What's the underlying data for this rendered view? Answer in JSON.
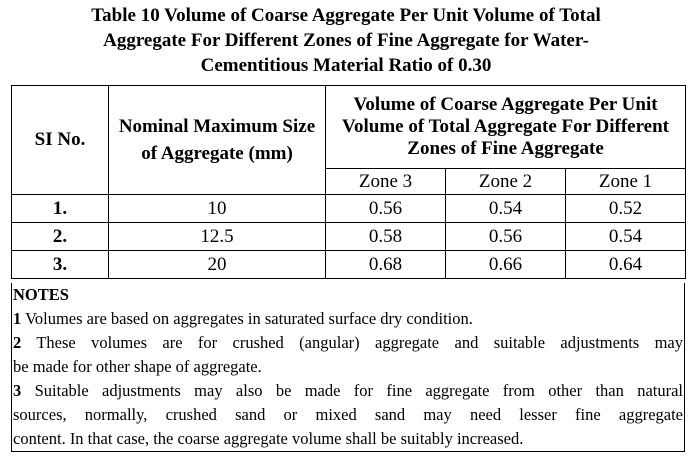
{
  "title": {
    "line1": "Table 10 Volume of Coarse Aggregate Per Unit Volume of  Total",
    "line2": "Aggregate For Different Zones of Fine Aggregate for Water-",
    "line3": "Cementitious Material Ratio of 0.30"
  },
  "table": {
    "headers": {
      "sl": "SI No.",
      "size": "Nominal Maximum Size of Aggregate (mm)",
      "volume": "Volume of Coarse Aggregate Per Unit Volume of Total Aggregate For Different Zones of Fine Aggregate",
      "zones": [
        "Zone 3",
        "Zone 2",
        "Zone 1"
      ]
    },
    "rows": [
      {
        "sl": "1.",
        "size": "10",
        "z3": "0.56",
        "z2": "0.54",
        "z1": "0.52"
      },
      {
        "sl": "2.",
        "size": "12.5",
        "z3": "0.58",
        "z2": "0.56",
        "z1": "0.54"
      },
      {
        "sl": "3.",
        "size": "20",
        "z3": "0.68",
        "z2": "0.66",
        "z1": "0.64"
      }
    ]
  },
  "notes": {
    "heading": "NOTES",
    "items": [
      {
        "num": "1",
        "text": "Volumes are based on aggregates in saturated surface dry condition."
      },
      {
        "num": "2",
        "text_a": "These volumes are for crushed (angular) aggregate and suitable adjustments may",
        "text_b": "be made for other shape of aggregate."
      },
      {
        "num": "3",
        "text_a": "Suitable adjustments may also be made for fine aggregate from other than natural",
        "text_b": "sources, normally, crushed sand or mixed sand may need lesser fine aggregate",
        "text_c": "content. In that case, the coarse aggregate volume shall be suitably increased."
      }
    ]
  }
}
